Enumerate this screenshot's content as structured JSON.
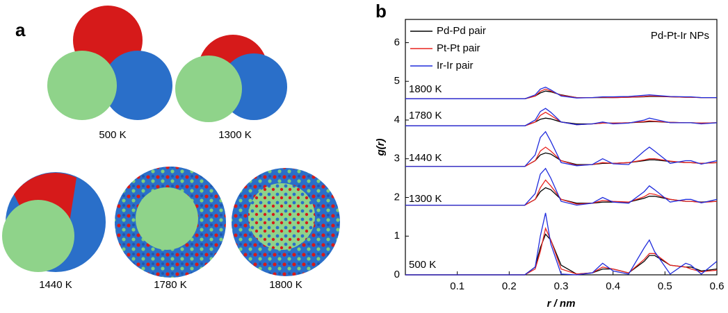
{
  "panel_labels": [
    "a",
    "b"
  ],
  "panel_a": {
    "labels": [
      "500 K",
      "1300 K",
      "1440 K",
      "1780 K",
      "1800 K"
    ]
  },
  "chart_data": {
    "type": "line",
    "x_label": "r / nm",
    "y_label": "g(r)",
    "annotation": "Pd-Pt-Ir NPs",
    "temperature_labels": [
      "500 K",
      "1300 K",
      "1440 K",
      "1780 K",
      "1800 K"
    ],
    "x": [
      0,
      0.2,
      0.23,
      0.25,
      0.26,
      0.27,
      0.28,
      0.3,
      0.33,
      0.36,
      0.38,
      0.4,
      0.43,
      0.46,
      0.47,
      0.48,
      0.51,
      0.54,
      0.55,
      0.57,
      0.6
    ],
    "xlim": [
      0,
      0.6
    ],
    "xticks": [
      0.1,
      0.2,
      0.3,
      0.4,
      0.5,
      0.6
    ],
    "ylim": [
      0,
      6.6
    ],
    "yticks": [
      0,
      1,
      2,
      3,
      4,
      5,
      6
    ],
    "series": [
      {
        "name": "Pd-Pd pair",
        "color": "#000000",
        "values": [
          [
            0,
            0,
            0,
            0.2,
            0.7,
            1.05,
            0.9,
            0.25,
            0.02,
            0.05,
            0.15,
            0.15,
            0.05,
            0.35,
            0.5,
            0.5,
            0.25,
            0.2,
            0.2,
            0.1,
            0.15
          ],
          [
            1.8,
            1.8,
            1.8,
            1.95,
            2.15,
            2.25,
            2.2,
            1.95,
            1.85,
            1.85,
            1.88,
            1.88,
            1.88,
            1.98,
            2.03,
            2.03,
            1.95,
            1.9,
            1.9,
            1.88,
            1.9
          ],
          [
            2.8,
            2.8,
            2.8,
            2.95,
            3.1,
            3.15,
            3.12,
            2.95,
            2.85,
            2.85,
            2.88,
            2.88,
            2.9,
            2.95,
            2.97,
            2.97,
            2.93,
            2.9,
            2.9,
            2.88,
            2.9
          ],
          [
            3.85,
            3.85,
            3.85,
            3.95,
            4.02,
            4.05,
            4.03,
            3.95,
            3.9,
            3.9,
            3.92,
            3.92,
            3.93,
            3.95,
            3.96,
            3.96,
            3.94,
            3.93,
            3.93,
            3.92,
            3.93
          ],
          [
            4.55,
            4.55,
            4.55,
            4.62,
            4.7,
            4.75,
            4.73,
            4.65,
            4.58,
            4.58,
            4.58,
            4.58,
            4.59,
            4.6,
            4.61,
            4.61,
            4.6,
            4.59,
            4.59,
            4.58,
            4.58
          ]
        ]
      },
      {
        "name": "Pt-Pt pair",
        "color": "#e8231f",
        "values": [
          [
            0,
            0,
            0,
            0.15,
            0.6,
            1.2,
            0.9,
            0.15,
            0.02,
            0.05,
            0.2,
            0.15,
            0.05,
            0.4,
            0.55,
            0.55,
            0.25,
            0.2,
            0.15,
            0.08,
            0.12
          ],
          [
            1.8,
            1.8,
            1.8,
            1.95,
            2.25,
            2.45,
            2.3,
            1.95,
            1.83,
            1.85,
            1.92,
            1.9,
            1.88,
            2.02,
            2.1,
            2.08,
            1.95,
            1.9,
            1.9,
            1.87,
            1.9
          ],
          [
            2.8,
            2.8,
            2.8,
            2.95,
            3.2,
            3.3,
            3.2,
            2.95,
            2.83,
            2.85,
            2.9,
            2.88,
            2.9,
            2.97,
            3.0,
            3.0,
            2.94,
            2.9,
            2.9,
            2.88,
            2.9
          ],
          [
            3.85,
            3.85,
            3.85,
            3.95,
            4.12,
            4.2,
            4.12,
            3.95,
            3.88,
            3.9,
            3.92,
            3.92,
            3.93,
            3.96,
            3.98,
            3.97,
            3.94,
            3.93,
            3.93,
            3.92,
            3.93
          ],
          [
            4.55,
            4.55,
            4.55,
            4.62,
            4.74,
            4.8,
            4.75,
            4.64,
            4.58,
            4.58,
            4.59,
            4.58,
            4.59,
            4.61,
            4.62,
            4.62,
            4.6,
            4.59,
            4.59,
            4.58,
            4.58
          ]
        ]
      },
      {
        "name": "Ir-Ir pair",
        "color": "#1f2bdc",
        "values": [
          [
            0,
            0,
            0,
            0.2,
            1.0,
            1.6,
            0.8,
            0.02,
            0,
            0.05,
            0.3,
            0.1,
            0.02,
            0.7,
            0.9,
            0.6,
            0.02,
            0.3,
            0.25,
            0.02,
            0.35
          ],
          [
            1.8,
            1.8,
            1.8,
            2.1,
            2.6,
            2.75,
            2.5,
            1.9,
            1.8,
            1.85,
            2.0,
            1.88,
            1.85,
            2.15,
            2.3,
            2.2,
            1.88,
            1.95,
            1.95,
            1.86,
            1.95
          ],
          [
            2.8,
            2.8,
            2.8,
            3.1,
            3.55,
            3.7,
            3.45,
            2.9,
            2.82,
            2.85,
            3.0,
            2.87,
            2.85,
            3.2,
            3.3,
            3.2,
            2.88,
            2.95,
            2.95,
            2.86,
            2.95
          ],
          [
            3.85,
            3.85,
            3.85,
            4.0,
            4.22,
            4.3,
            4.2,
            3.95,
            3.88,
            3.9,
            3.95,
            3.9,
            3.92,
            4.0,
            4.05,
            4.02,
            3.93,
            3.93,
            3.93,
            3.9,
            3.93
          ],
          [
            4.55,
            4.55,
            4.55,
            4.65,
            4.8,
            4.85,
            4.78,
            4.62,
            4.57,
            4.58,
            4.6,
            4.6,
            4.61,
            4.64,
            4.65,
            4.64,
            4.61,
            4.6,
            4.6,
            4.58,
            4.58
          ]
        ]
      }
    ],
    "legend": "upper left"
  }
}
